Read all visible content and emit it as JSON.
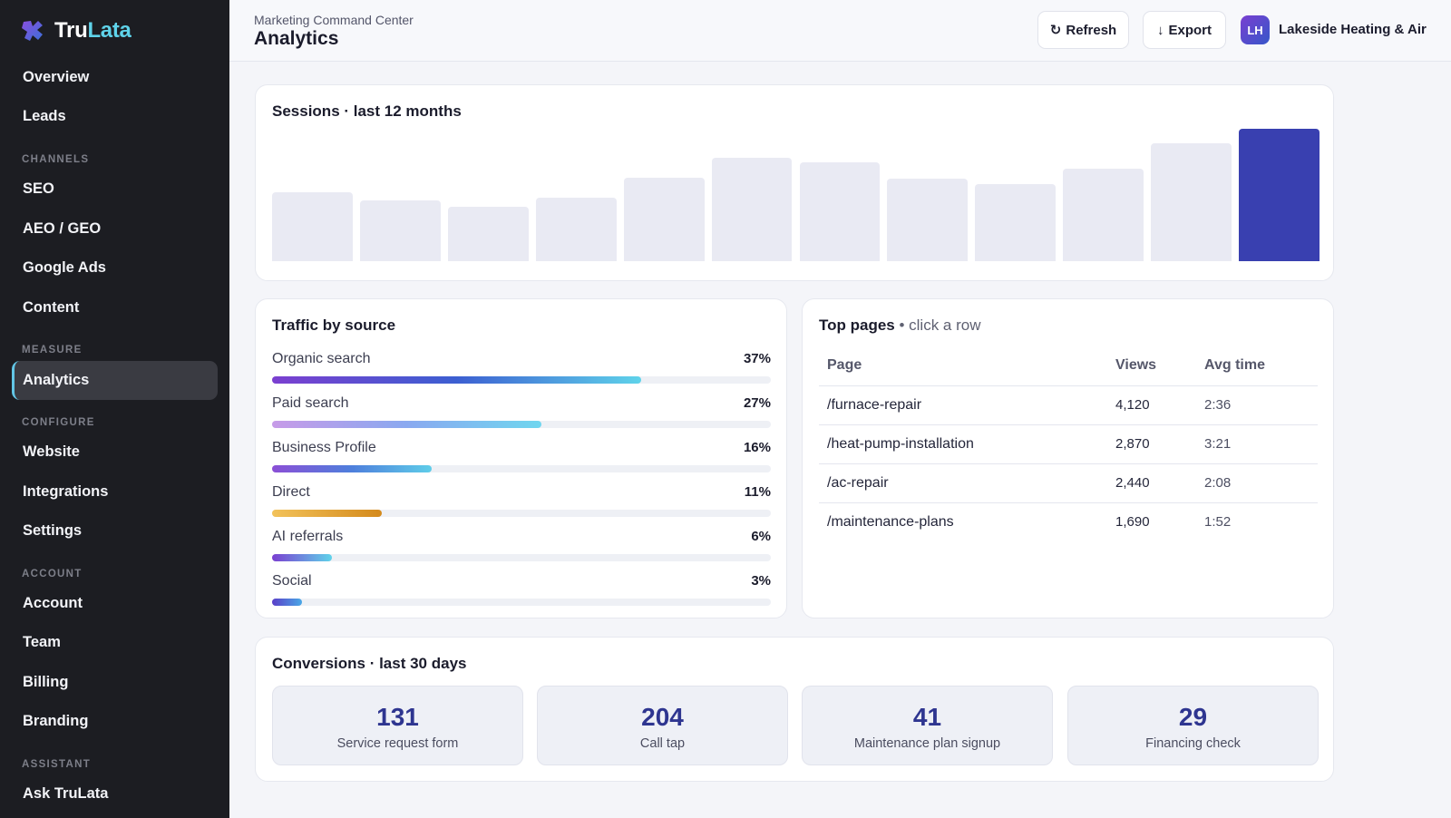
{
  "brand": {
    "part1": "Tru",
    "part2": "Lata"
  },
  "sidebar": {
    "items": [
      {
        "label": "Overview",
        "name": "overview"
      },
      {
        "label": "Leads",
        "name": "leads"
      },
      {
        "label": "SEO",
        "name": "seo"
      },
      {
        "label": "AEO / GEO",
        "name": "aeo-geo"
      },
      {
        "label": "Google Ads",
        "name": "google-ads"
      },
      {
        "label": "Content",
        "name": "content"
      },
      {
        "label": "Analytics",
        "name": "analytics"
      },
      {
        "label": "Website",
        "name": "website"
      },
      {
        "label": "Integrations",
        "name": "integrations"
      },
      {
        "label": "Settings",
        "name": "settings"
      },
      {
        "label": "Account",
        "name": "account"
      },
      {
        "label": "Team",
        "name": "team"
      },
      {
        "label": "Billing",
        "name": "billing"
      },
      {
        "label": "Branding",
        "name": "branding"
      },
      {
        "label": "Ask TruLata",
        "name": "ask-trulata"
      }
    ],
    "sections": [
      "CHANNELS",
      "MEASURE",
      "CONFIGURE",
      "ACCOUNT",
      "ASSISTANT"
    ],
    "active": "Analytics",
    "accent": "#62c6e6"
  },
  "header": {
    "breadcrumb": "Marketing Command Center",
    "title": "Analytics",
    "refresh_label": "Refresh",
    "refresh_icon": "refresh-icon",
    "export_label": "Export",
    "export_icon": "arrow-down-icon",
    "avatar_initials": "LH",
    "org_name": "Lakeside Heating & Air"
  },
  "sessions": {
    "title": "Sessions · last 12 months",
    "highlight_color": "#3940b0"
  },
  "chart_data": {
    "type": "bar",
    "title": "Sessions · last 12 months",
    "values": [
      52,
      46,
      41,
      48,
      63,
      78,
      75,
      62,
      58,
      70,
      89,
      100
    ],
    "highlighted_index": 11,
    "ylim": [
      0,
      100
    ]
  },
  "traffic": {
    "title": "Traffic by source",
    "sources": [
      {
        "label": "Organic search",
        "pct_text": "37%",
        "pct": 37,
        "gradient": [
          "#7b3fd0",
          "#3c5fd1",
          "#5fd3ea"
        ]
      },
      {
        "label": "Paid search",
        "pct_text": "27%",
        "pct": 27,
        "gradient": [
          "#c79be8",
          "#8aa9f0",
          "#6fd6ef"
        ]
      },
      {
        "label": "Business Profile",
        "pct_text": "16%",
        "pct": 16,
        "gradient": [
          "#8b4fd6",
          "#4e7fdc",
          "#5fcde9"
        ]
      },
      {
        "label": "Direct",
        "pct_text": "11%",
        "pct": 11,
        "gradient": [
          "#f2c25a",
          "#d48a1c"
        ]
      },
      {
        "label": "AI referrals",
        "pct_text": "6%",
        "pct": 6,
        "gradient": [
          "#7a3fd1",
          "#5fd3ea"
        ]
      },
      {
        "label": "Social",
        "pct_text": "3%",
        "pct": 3,
        "gradient": [
          "#5a3fc9",
          "#4aa8e6"
        ]
      }
    ]
  },
  "top_pages": {
    "title": "Top pages",
    "subtitle": " • click a row",
    "columns": [
      "Page",
      "Views",
      "Avg time"
    ],
    "rows": [
      {
        "page": "/furnace-repair",
        "views": "4,120",
        "avg": "2:36"
      },
      {
        "page": "/heat-pump-installation",
        "views": "2,870",
        "avg": "3:21"
      },
      {
        "page": "/ac-repair",
        "views": "2,440",
        "avg": "2:08"
      },
      {
        "page": "/maintenance-plans",
        "views": "1,690",
        "avg": "1:52"
      }
    ]
  },
  "conversions": {
    "title": "Conversions · last 30 days",
    "items": [
      {
        "value": "131",
        "label": "Service request form"
      },
      {
        "value": "204",
        "label": "Call tap"
      },
      {
        "value": "41",
        "label": "Maintenance plan signup"
      },
      {
        "value": "29",
        "label": "Financing check"
      }
    ]
  }
}
